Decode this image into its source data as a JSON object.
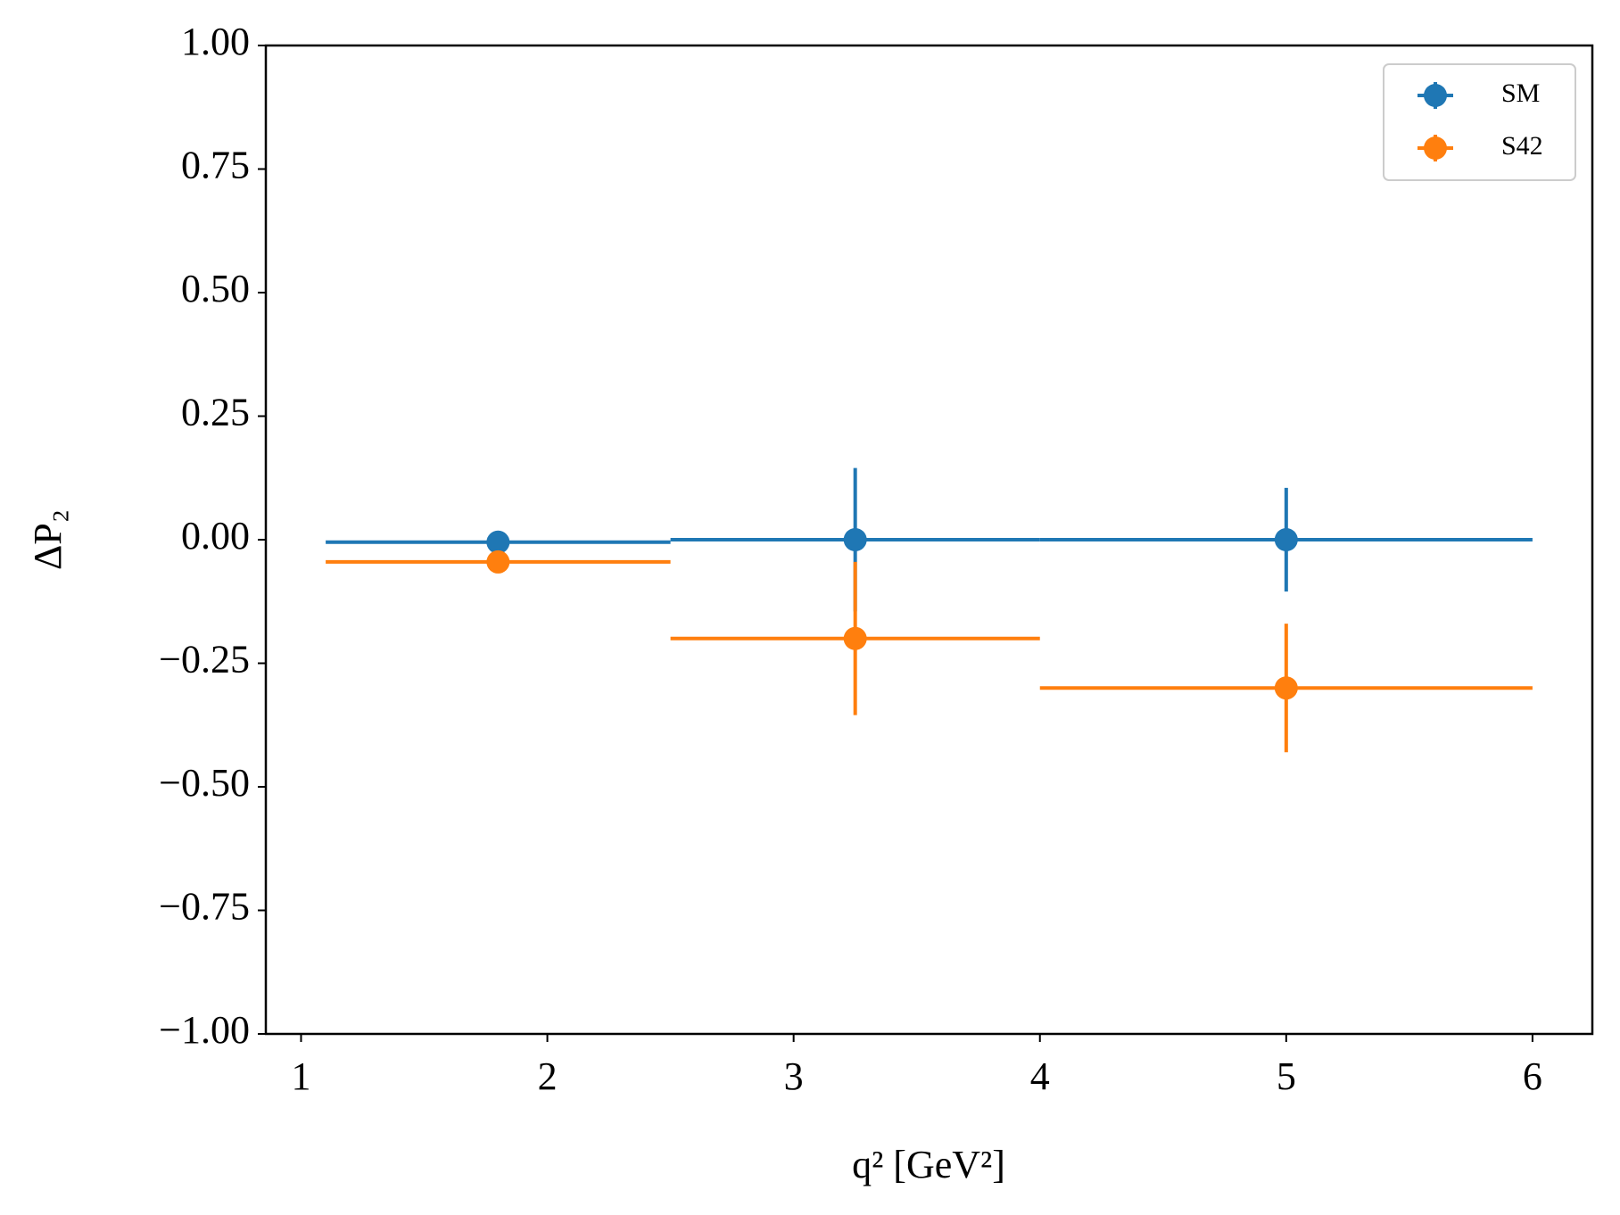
{
  "chart_data": {
    "type": "errorbar",
    "xlabel": "q² [GeV²]",
    "ylabel": "ΔP₂",
    "xlim": [
      0.857,
      6.243
    ],
    "xticks": [
      1,
      2,
      3,
      4,
      5,
      6
    ],
    "ylim": [
      -1,
      1
    ],
    "yticks": [
      {
        "value": -1,
        "label": "−1.00"
      },
      {
        "value": -0.75,
        "label": "−0.75"
      },
      {
        "value": -0.5,
        "label": "−0.50"
      },
      {
        "value": -0.25,
        "label": "−0.25"
      },
      {
        "value": 0,
        "label": "0.00"
      },
      {
        "value": 0.25,
        "label": "0.25"
      },
      {
        "value": 0.5,
        "label": "0.50"
      },
      {
        "value": 0.75,
        "label": "0.75"
      },
      {
        "value": 1,
        "label": "1.00"
      }
    ],
    "legend": "upper right",
    "series": [
      {
        "name": "SM",
        "color": "#1f77b4",
        "x": [
          1.8,
          3.25,
          5
        ],
        "xerr": [
          0.7,
          0.75,
          1.0
        ],
        "values": [
          -0.005,
          0,
          0
        ],
        "yerr": [
          0.005,
          0.145,
          0.105
        ]
      },
      {
        "name": "S42",
        "color": "#ff7f0e",
        "x": [
          1.8,
          3.25,
          5
        ],
        "xerr": [
          0.7,
          0.75,
          1.0
        ],
        "values": [
          -0.045,
          -0.2,
          -0.3
        ],
        "yerr": [
          0.005,
          0.155,
          0.13
        ]
      }
    ]
  }
}
